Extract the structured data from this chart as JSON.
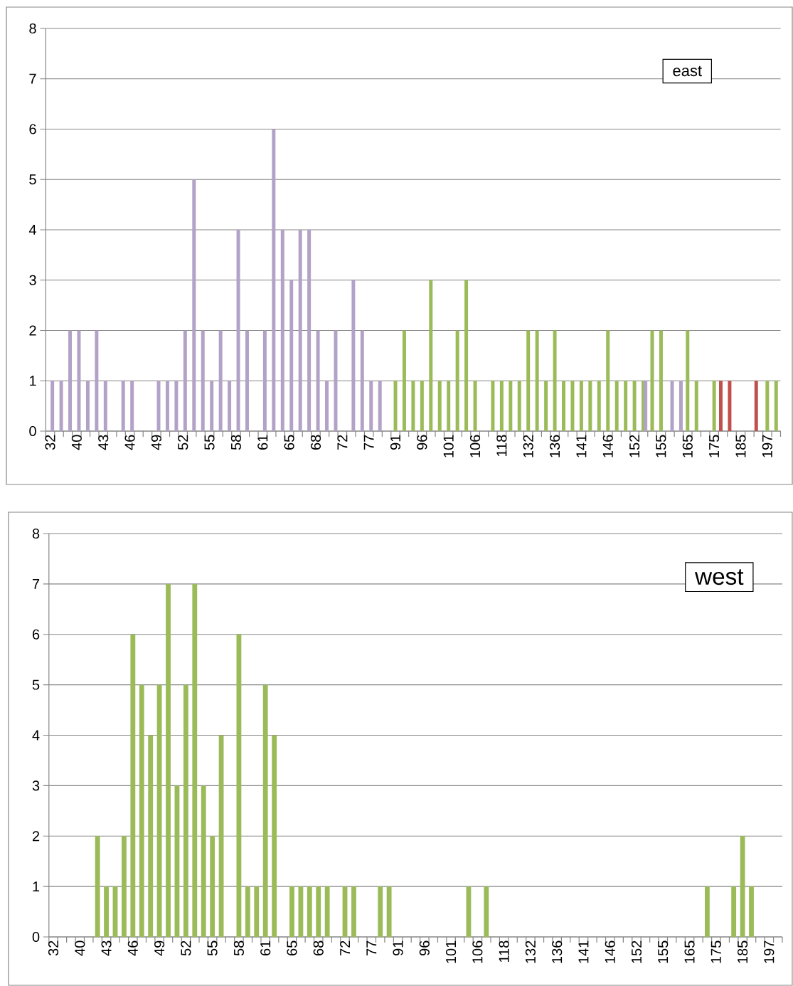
{
  "chart_data": [
    {
      "type": "bar",
      "title": "east",
      "categories": [
        "32",
        null,
        null,
        "40",
        null,
        null,
        "43",
        null,
        null,
        "46",
        null,
        null,
        "49",
        null,
        null,
        "52",
        null,
        null,
        "55",
        null,
        null,
        "58",
        null,
        null,
        "61",
        null,
        null,
        "65",
        null,
        null,
        "68",
        null,
        null,
        "72",
        null,
        null,
        "77",
        null,
        null,
        "91",
        null,
        null,
        "96",
        null,
        null,
        "101",
        null,
        null,
        "106",
        null,
        null,
        "118",
        null,
        null,
        "132",
        null,
        null,
        "136",
        null,
        null,
        "141",
        null,
        null,
        "146",
        null,
        null,
        "152",
        null,
        null,
        "155",
        null,
        null,
        "165",
        null,
        null,
        "175",
        null,
        null,
        "185",
        null,
        null,
        "197",
        null
      ],
      "series": [
        {
          "color": "#c0504d",
          "values": [
            null,
            null,
            null,
            null,
            null,
            null,
            null,
            null,
            null,
            null,
            null,
            null,
            null,
            null,
            null,
            null,
            null,
            null,
            null,
            null,
            null,
            null,
            null,
            null,
            null,
            null,
            null,
            null,
            null,
            null,
            null,
            null,
            null,
            null,
            null,
            null,
            null,
            null,
            null,
            null,
            null,
            null,
            null,
            null,
            null,
            null,
            null,
            null,
            null,
            null,
            null,
            null,
            null,
            null,
            null,
            null,
            null,
            null,
            null,
            null,
            null,
            null,
            null,
            null,
            null,
            null,
            null,
            null,
            null,
            null,
            null,
            null,
            null,
            null,
            null,
            null,
            1,
            1,
            null,
            null,
            1,
            null,
            null
          ]
        },
        {
          "color": "#9bbb59",
          "values": [
            null,
            null,
            null,
            null,
            null,
            null,
            null,
            null,
            null,
            null,
            null,
            null,
            null,
            null,
            null,
            null,
            null,
            null,
            null,
            null,
            null,
            null,
            null,
            null,
            null,
            null,
            null,
            null,
            null,
            null,
            null,
            null,
            null,
            null,
            null,
            null,
            null,
            null,
            null,
            1,
            2,
            1,
            1,
            3,
            1,
            1,
            2,
            3,
            1,
            null,
            1,
            1,
            1,
            1,
            2,
            2,
            1,
            2,
            1,
            1,
            1,
            1,
            1,
            2,
            1,
            1,
            1,
            1,
            2,
            2,
            null,
            null,
            2,
            1,
            null,
            1,
            null,
            null,
            null,
            null,
            null,
            1,
            1
          ]
        },
        {
          "color": "#b3a2c7",
          "values": [
            1,
            1,
            2,
            2,
            1,
            2,
            1,
            null,
            1,
            1,
            null,
            null,
            1,
            1,
            1,
            2,
            5,
            2,
            1,
            2,
            1,
            4,
            2,
            null,
            2,
            6,
            4,
            3,
            4,
            4,
            2,
            1,
            2,
            null,
            3,
            2,
            1,
            1,
            null,
            null,
            null,
            null,
            null,
            null,
            null,
            null,
            null,
            null,
            null,
            null,
            null,
            null,
            null,
            null,
            null,
            null,
            null,
            null,
            null,
            null,
            null,
            null,
            null,
            null,
            null,
            null,
            null,
            1,
            null,
            null,
            1,
            1,
            null,
            null,
            null,
            null,
            null,
            null,
            null,
            null,
            null,
            null,
            null
          ]
        }
      ],
      "ylim": [
        0,
        8
      ],
      "yticks": [
        0,
        1,
        2,
        3,
        4,
        5,
        6,
        7,
        8
      ],
      "grid": "y"
    },
    {
      "type": "bar",
      "title": "west",
      "categories": [
        "32",
        null,
        null,
        "40",
        null,
        null,
        "43",
        null,
        null,
        "46",
        null,
        null,
        "49",
        null,
        null,
        "52",
        null,
        null,
        "55",
        null,
        null,
        "58",
        null,
        null,
        "61",
        null,
        null,
        "65",
        null,
        null,
        "68",
        null,
        null,
        "72",
        null,
        null,
        "77",
        null,
        null,
        "91",
        null,
        null,
        "96",
        null,
        null,
        "101",
        null,
        null,
        "106",
        null,
        null,
        "118",
        null,
        null,
        "132",
        null,
        null,
        "136",
        null,
        null,
        "141",
        null,
        null,
        "146",
        null,
        null,
        "152",
        null,
        null,
        "155",
        null,
        null,
        "165",
        null,
        null,
        "175",
        null,
        null,
        "185",
        null,
        null,
        "197",
        null
      ],
      "series": [
        {
          "color": "#9bbb59",
          "values": [
            null,
            null,
            null,
            null,
            null,
            2,
            1,
            1,
            2,
            6,
            5,
            4,
            5,
            7,
            3,
            5,
            7,
            3,
            2,
            4,
            null,
            6,
            1,
            1,
            5,
            4,
            null,
            1,
            1,
            1,
            1,
            1,
            null,
            1,
            1,
            null,
            null,
            1,
            1,
            null,
            null,
            null,
            null,
            null,
            null,
            null,
            null,
            1,
            null,
            1,
            null,
            null,
            null,
            null,
            null,
            null,
            null,
            null,
            null,
            null,
            null,
            null,
            null,
            null,
            null,
            null,
            null,
            null,
            null,
            null,
            null,
            null,
            null,
            null,
            1,
            null,
            null,
            1,
            2,
            1,
            null,
            null,
            null
          ]
        }
      ],
      "ylim": [
        0,
        8
      ],
      "yticks": [
        0,
        1,
        2,
        3,
        4,
        5,
        6,
        7,
        8
      ],
      "grid": "y"
    }
  ]
}
